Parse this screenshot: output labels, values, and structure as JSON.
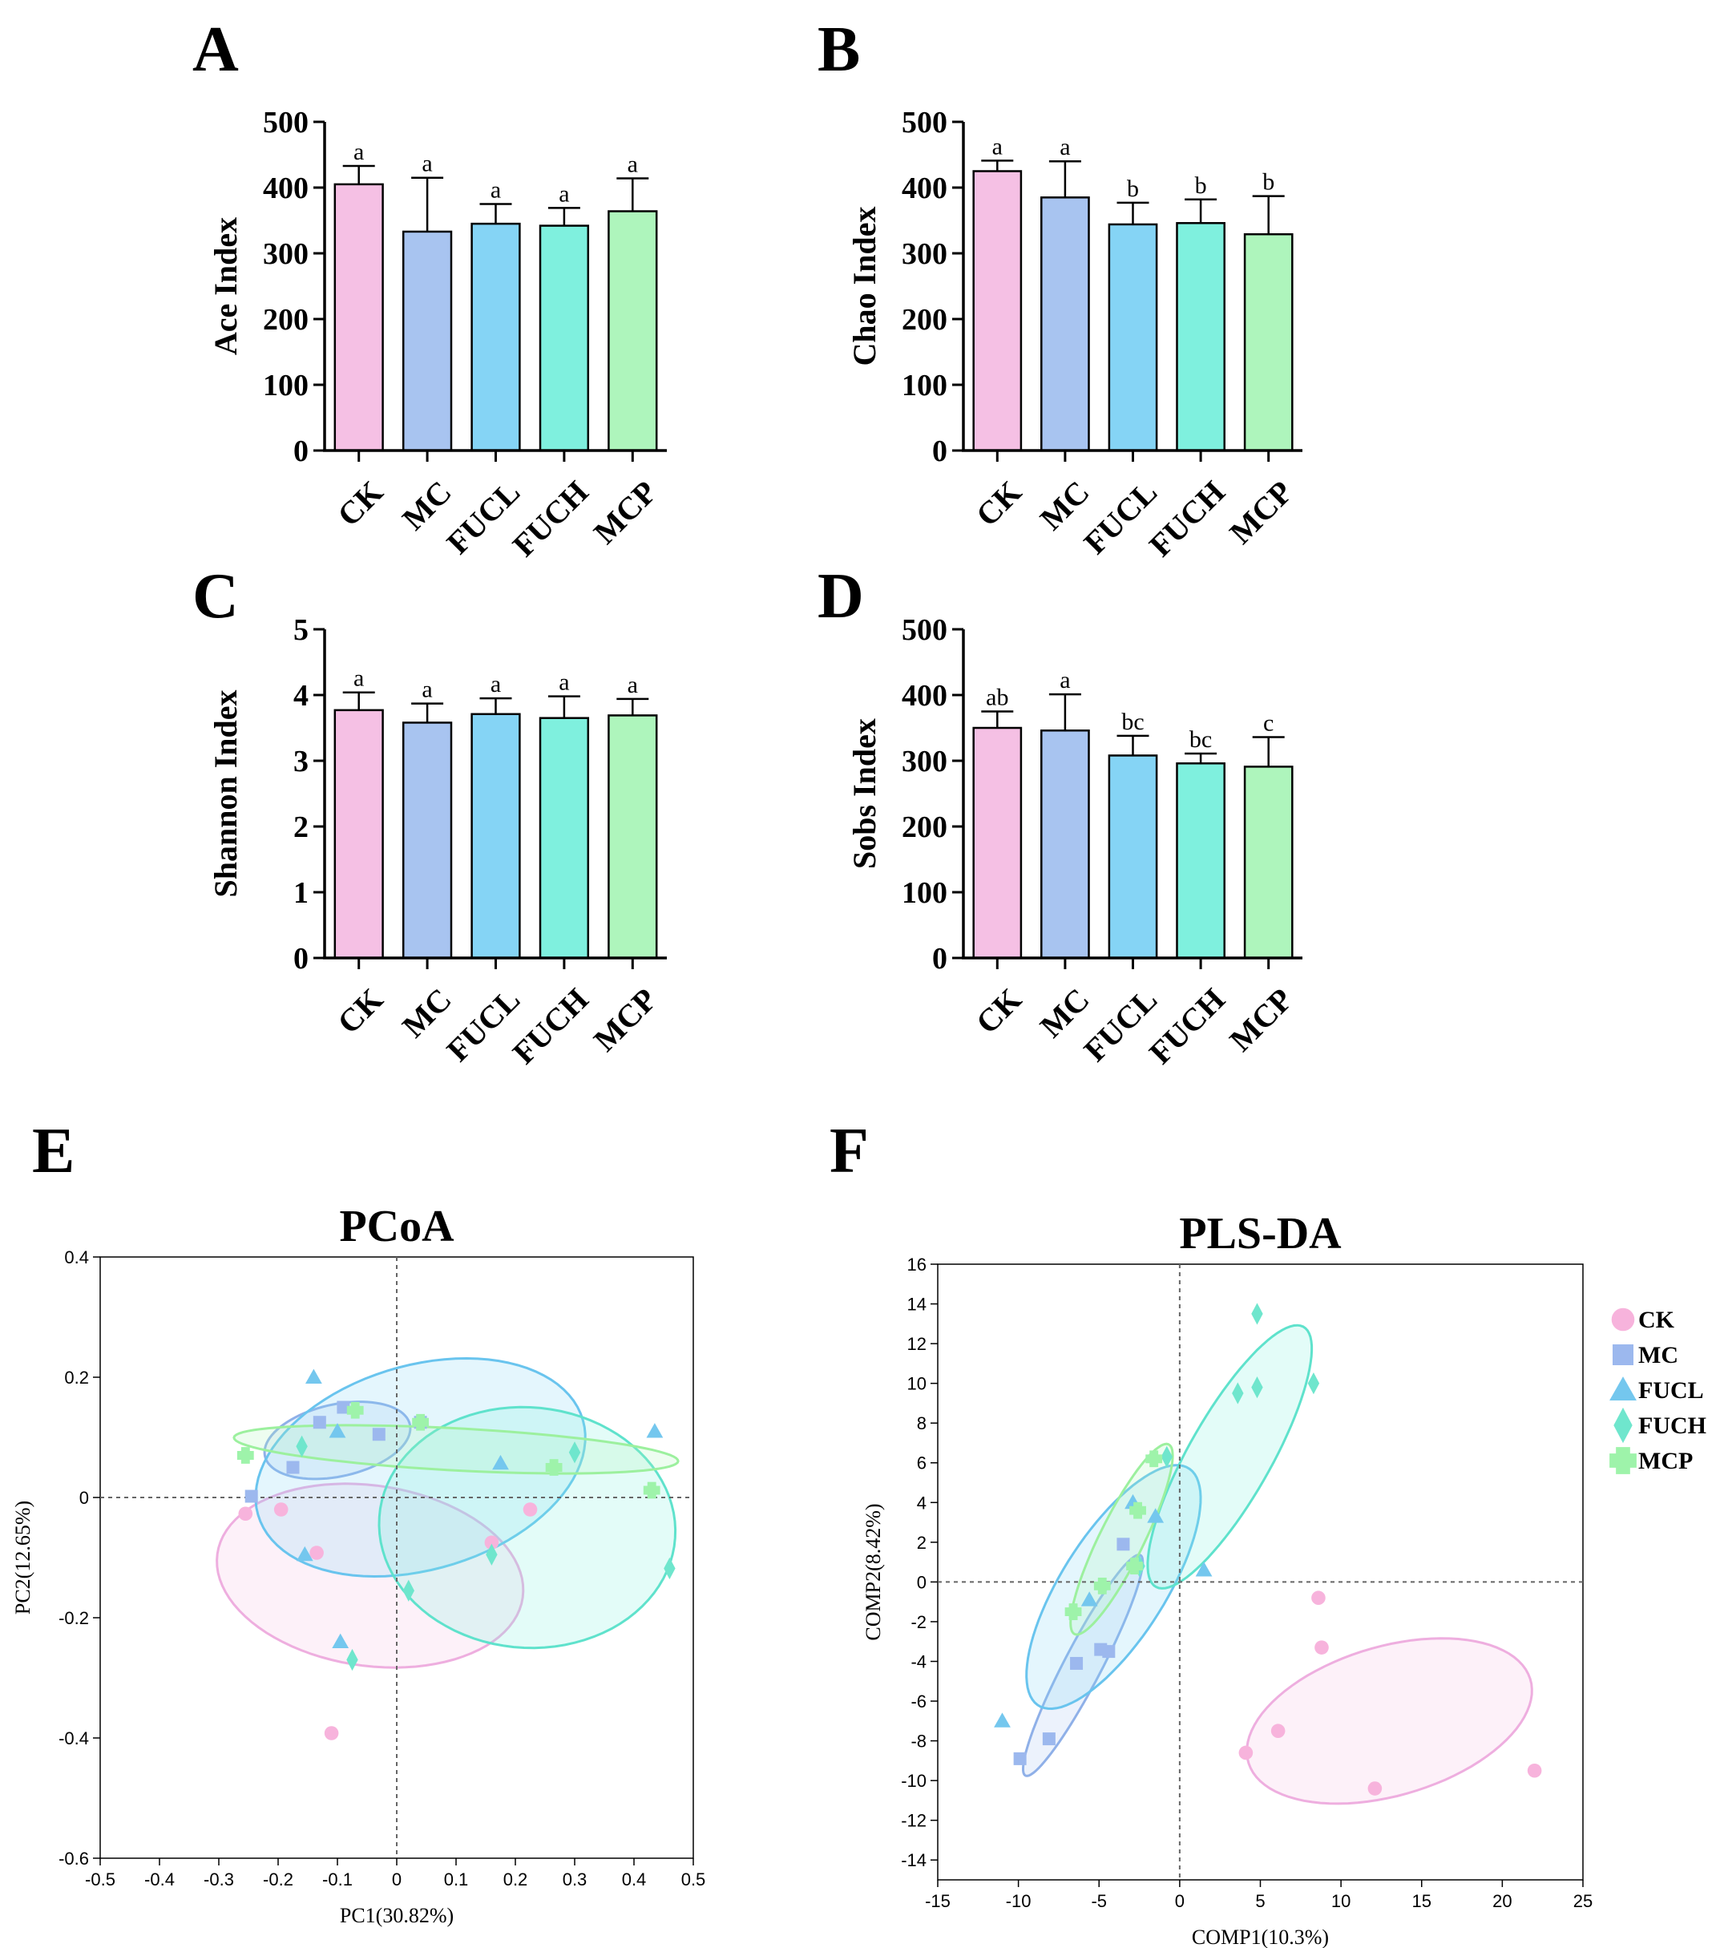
{
  "figure": {
    "colors": {
      "CK": "#f5c0e4",
      "MC": "#a8c4f0",
      "FUCL": "#85d4f5",
      "FUCH": "#7ff0de",
      "MCP": "#aef5bc",
      "CK_marker": "#f7b3dc",
      "MC_marker": "#9cb8ee",
      "FUCL_marker": "#74c7ee",
      "FUCH_marker": "#6fe6cd",
      "MCP_marker": "#9ef3aa",
      "CK_edge": "#eeaedf",
      "MC_edge": "#8fb0e8",
      "FUCL_edge": "#69c4ee",
      "FUCH_edge": "#5fe2cc",
      "MCP_edge": "#9cf09e"
    },
    "legend": [
      {
        "name": "CK",
        "marker": "circle"
      },
      {
        "name": "MC",
        "marker": "square"
      },
      {
        "name": "FUCL",
        "marker": "triangle"
      },
      {
        "name": "FUCH",
        "marker": "diamond"
      },
      {
        "name": "MCP",
        "marker": "plus"
      }
    ]
  },
  "chart_data": [
    {
      "panel": "A",
      "type": "bar",
      "title": "",
      "ylabel": "Ace Index",
      "xlabel": "",
      "categories": [
        "CK",
        "MC",
        "FUCL",
        "FUCH",
        "MCP"
      ],
      "values": [
        405,
        333,
        345,
        342,
        364
      ],
      "errors": [
        28,
        82,
        30,
        27,
        50
      ],
      "letters": [
        "a",
        "a",
        "a",
        "a",
        "a"
      ],
      "ylim": [
        0,
        500
      ],
      "yticks": [
        0,
        100,
        200,
        300,
        400,
        500
      ]
    },
    {
      "panel": "B",
      "type": "bar",
      "title": "",
      "ylabel": "Chao Index",
      "xlabel": "",
      "categories": [
        "CK",
        "MC",
        "FUCL",
        "FUCH",
        "MCP"
      ],
      "values": [
        425,
        385,
        344,
        346,
        329
      ],
      "errors": [
        16,
        55,
        33,
        36,
        58
      ],
      "letters": [
        "a",
        "a",
        "b",
        "b",
        "b"
      ],
      "ylim": [
        0,
        500
      ],
      "yticks": [
        0,
        100,
        200,
        300,
        400,
        500
      ]
    },
    {
      "panel": "C",
      "type": "bar",
      "title": "",
      "ylabel": "Shannon Index",
      "xlabel": "",
      "categories": [
        "CK",
        "MC",
        "FUCL",
        "FUCH",
        "MCP"
      ],
      "values": [
        3.77,
        3.58,
        3.71,
        3.65,
        3.69
      ],
      "errors": [
        0.27,
        0.29,
        0.24,
        0.33,
        0.25
      ],
      "letters": [
        "a",
        "a",
        "a",
        "a",
        "a"
      ],
      "ylim": [
        0,
        5
      ],
      "yticks": [
        0,
        1,
        2,
        3,
        4,
        5
      ]
    },
    {
      "panel": "D",
      "type": "bar",
      "title": "",
      "ylabel": "Sobs Index",
      "xlabel": "",
      "categories": [
        "CK",
        "MC",
        "FUCL",
        "FUCH",
        "MCP"
      ],
      "values": [
        350,
        346,
        308,
        296,
        291
      ],
      "errors": [
        25,
        55,
        30,
        15,
        45
      ],
      "letters": [
        "ab",
        "a",
        "bc",
        "bc",
        "c"
      ],
      "ylim": [
        0,
        500
      ],
      "yticks": [
        0,
        100,
        200,
        300,
        400,
        500
      ]
    },
    {
      "panel": "E",
      "type": "scatter",
      "title": "PCoA",
      "xlabel": "PC1(30.82%)",
      "ylabel": "PC2(12.65%)",
      "xlim": [
        -0.5,
        0.5
      ],
      "ylim": [
        -0.6,
        0.4
      ],
      "xticks": [
        -0.5,
        -0.4,
        -0.3,
        -0.2,
        -0.1,
        0,
        0.1,
        0.2,
        0.3,
        0.4,
        0.5
      ],
      "yticks": [
        -0.6,
        -0.4,
        -0.2,
        0,
        0.2,
        0.4
      ],
      "series": [
        {
          "name": "CK",
          "points": [
            [
              -0.255,
              -0.027
            ],
            [
              -0.195,
              -0.02
            ],
            [
              -0.135,
              -0.092
            ],
            [
              0.16,
              -0.075
            ],
            [
              0.225,
              -0.02
            ],
            [
              -0.11,
              -0.392
            ]
          ],
          "ellipse": {
            "center": [
              -0.045,
              -0.13
            ],
            "rx": 0.26,
            "ry": 0.15,
            "angle_deg": -8
          }
        },
        {
          "name": "MC",
          "points": [
            [
              -0.245,
              0.002
            ],
            [
              -0.175,
              0.05
            ],
            [
              -0.09,
              0.15
            ],
            [
              -0.13,
              0.125
            ],
            [
              0.04,
              0.125
            ],
            [
              -0.03,
              0.105
            ]
          ],
          "ellipse": {
            "center": [
              -0.1,
              0.095
            ],
            "rx": 0.125,
            "ry": 0.06,
            "angle_deg": 12
          }
        },
        {
          "name": "FUCL",
          "points": [
            [
              -0.14,
              0.2
            ],
            [
              -0.1,
              0.11
            ],
            [
              0.175,
              0.057
            ],
            [
              0.435,
              0.11
            ],
            [
              -0.155,
              -0.095
            ],
            [
              -0.095,
              -0.24
            ]
          ],
          "ellipse": {
            "center": [
              0.04,
              0.05
            ],
            "rx": 0.285,
            "ry": 0.17,
            "angle_deg": 16
          }
        },
        {
          "name": "FUCH",
          "points": [
            [
              -0.16,
              0.085
            ],
            [
              0.3,
              0.075
            ],
            [
              0.16,
              -0.095
            ],
            [
              0.02,
              -0.155
            ],
            [
              -0.075,
              -0.27
            ],
            [
              0.46,
              -0.118
            ]
          ],
          "ellipse": {
            "center": [
              0.22,
              -0.05
            ],
            "rx": 0.25,
            "ry": 0.2,
            "angle_deg": -4
          }
        },
        {
          "name": "MCP",
          "points": [
            [
              -0.255,
              0.07
            ],
            [
              -0.07,
              0.145
            ],
            [
              0.265,
              0.05
            ],
            [
              0.43,
              0.012
            ],
            [
              0.04,
              0.125
            ]
          ],
          "ellipse": {
            "center": [
              0.1,
              0.08
            ],
            "rx": 0.375,
            "ry": 0.035,
            "angle_deg": -3
          }
        }
      ]
    },
    {
      "panel": "F",
      "type": "scatter",
      "title": "PLS-DA",
      "xlabel": "COMP1(10.3%)",
      "ylabel": "COMP2(8.42%)",
      "xlim": [
        -15,
        25
      ],
      "ylim": [
        -15,
        16
      ],
      "xticks": [
        -15,
        -10,
        -5,
        0,
        5,
        10,
        15,
        20,
        25
      ],
      "yticks": [
        -14,
        -12,
        -10,
        -8,
        -6,
        -4,
        -2,
        0,
        2,
        4,
        6,
        8,
        10,
        12,
        14,
        16
      ],
      "series": [
        {
          "name": "CK",
          "points": [
            [
              8.6,
              -0.8
            ],
            [
              8.8,
              -3.3
            ],
            [
              4.1,
              -8.6
            ],
            [
              6.1,
              -7.5
            ],
            [
              12.1,
              -10.4
            ],
            [
              22.0,
              -9.5
            ]
          ],
          "ellipse": {
            "center": [
              13.0,
              -7.0
            ],
            "rx": 9.0,
            "ry": 3.8,
            "angle_deg": 12
          }
        },
        {
          "name": "MC",
          "points": [
            [
              -3.5,
              1.9
            ],
            [
              -4.9,
              -3.4
            ],
            [
              -4.4,
              -3.5
            ],
            [
              -6.4,
              -4.1
            ],
            [
              -8.1,
              -7.9
            ],
            [
              -9.9,
              -8.9
            ]
          ],
          "ellipse": {
            "center": [
              -6.0,
              -4.2
            ],
            "rx": 6.6,
            "ry": 1.1,
            "angle_deg": 57
          }
        },
        {
          "name": "FUCL",
          "points": [
            [
              -2.9,
              4.0
            ],
            [
              -1.5,
              3.3
            ],
            [
              1.5,
              0.6
            ],
            [
              -5.6,
              -0.9
            ],
            [
              -11.0,
              -7.0
            ]
          ],
          "ellipse": {
            "center": [
              -4.1,
              -0.25
            ],
            "rx": 7.6,
            "ry": 3.0,
            "angle_deg": 50
          }
        },
        {
          "name": "FUCH",
          "points": [
            [
              4.8,
              13.5
            ],
            [
              8.3,
              10.0
            ],
            [
              3.6,
              9.5
            ],
            [
              4.8,
              9.8
            ],
            [
              -0.8,
              6.3
            ],
            [
              -2.5,
              0.8
            ]
          ],
          "ellipse": {
            "center": [
              3.1,
              6.3
            ],
            "rx": 8.0,
            "ry": 2.4,
            "angle_deg": 54
          }
        },
        {
          "name": "MCP",
          "points": [
            [
              -6.6,
              -1.5
            ],
            [
              -4.8,
              -0.2
            ],
            [
              -2.6,
              3.6
            ],
            [
              -1.6,
              6.2
            ],
            [
              -2.8,
              0.8
            ]
          ],
          "ellipse": {
            "center": [
              -3.6,
              2.15
            ],
            "rx": 5.6,
            "ry": 1.3,
            "angle_deg": 58
          }
        }
      ]
    }
  ]
}
